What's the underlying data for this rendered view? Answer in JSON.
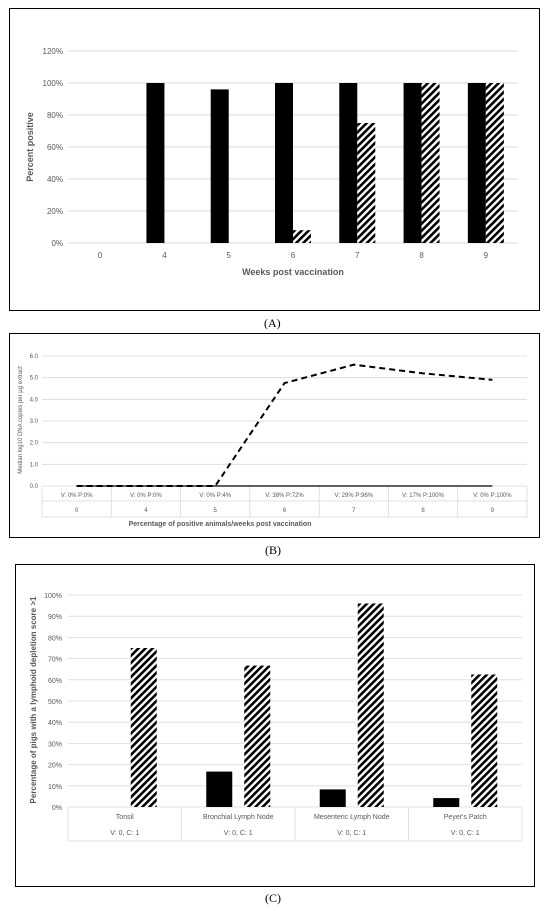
{
  "colors": {
    "solid": "#000000",
    "grid": "#d9d9d9",
    "text": "#595959"
  },
  "panels": [
    {
      "label": "(A)"
    },
    {
      "label": "(B)"
    },
    {
      "label": "(C)"
    }
  ],
  "chart_data": [
    {
      "type": "bar",
      "title": "",
      "xlabel": "Weeks post vaccination",
      "ylabel": "Percent positive",
      "categories": [
        "0",
        "4",
        "5",
        "6",
        "7",
        "8",
        "9"
      ],
      "yticks": [
        "0%",
        "20%",
        "40%",
        "60%",
        "80%",
        "100%",
        "120%"
      ],
      "ylim": [
        0,
        120
      ],
      "grid": true,
      "series": [
        {
          "fill": "solid",
          "values": [
            0,
            100,
            96,
            100,
            100,
            100,
            100
          ]
        },
        {
          "fill": "hatched",
          "values": [
            0,
            0,
            0,
            8,
            75,
            100,
            100
          ]
        }
      ]
    },
    {
      "type": "line",
      "title": "",
      "xlabel": "Percentage of positive animals/weeks post vaccination",
      "ylabel": "Median log10 DNA copies per µg extract",
      "categories": [
        "0",
        "4",
        "5",
        "6",
        "7",
        "8",
        "9"
      ],
      "category_notes": [
        "V: 0% P:0%",
        "V: 0% P:0%",
        "V: 0% P:4%",
        "V: 38% P:72%",
        "V: 29% P:96%",
        "V: 17% P:100%",
        "V: 0% P:100%"
      ],
      "yticks": [
        "0.0",
        "1.0",
        "2.0",
        "3.0",
        "4.0",
        "5.0",
        "6.0"
      ],
      "ylim": [
        0,
        6
      ],
      "grid": true,
      "series": [
        {
          "style": "solid",
          "values": [
            0,
            0,
            0,
            0,
            0,
            0,
            0
          ]
        },
        {
          "style": "dashed",
          "values": [
            0,
            0,
            0,
            4.75,
            5.6,
            5.2,
            4.9
          ]
        }
      ]
    },
    {
      "type": "bar",
      "title": "",
      "xlabel": "",
      "ylabel": "Percentage of pigs with a lymphoid depletion score >1",
      "categories": [
        "Tonsil",
        "Bronchial Lymph Node",
        "Mesenteric Lymph Node",
        "Peyer's Patch"
      ],
      "category_notes": [
        "V: 0, C: 1",
        "V: 0, C: 1",
        "V: 0, C: 1",
        "V: 0, C: 1"
      ],
      "yticks": [
        "0%",
        "10%",
        "20%",
        "30%",
        "40%",
        "50%",
        "60%",
        "70%",
        "80%",
        "90%",
        "100%"
      ],
      "ylim": [
        0,
        100
      ],
      "grid": true,
      "series": [
        {
          "fill": "solid",
          "values": [
            0,
            16.7,
            8.3,
            4.2
          ]
        },
        {
          "fill": "hatched",
          "values": [
            75,
            66.7,
            96,
            62.5
          ]
        }
      ]
    }
  ]
}
